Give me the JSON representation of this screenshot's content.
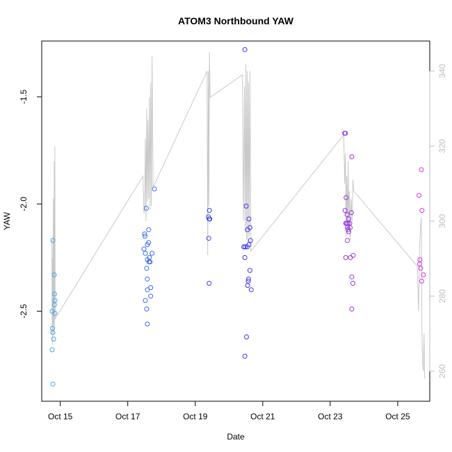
{
  "chart_data": {
    "type": "scatter",
    "title": "ATOM3 Northbound YAW",
    "xlabel": "Date",
    "ylabel": "YAW",
    "x_ticks": [
      "Oct 15",
      "Oct 17",
      "Oct 19",
      "Oct 21",
      "Oct 23",
      "Oct 25"
    ],
    "x_tick_days": [
      15,
      17,
      19,
      21,
      23,
      25
    ],
    "xlim_days": [
      14.45,
      25.95
    ],
    "ylim": [
      -2.92,
      -1.24
    ],
    "y_ticks": [
      -2.5,
      -2.0,
      -1.5
    ],
    "y_tick_labels": [
      "-2.5",
      "-2.0",
      "-1.5"
    ],
    "right_axis": {
      "ylim": [
        252,
        348
      ],
      "ticks": [
        260,
        280,
        300,
        320,
        340
      ],
      "tick_labels": [
        "260",
        "280",
        "300",
        "320",
        "340"
      ],
      "color": "#bdbdbd"
    },
    "colors": {
      "line": "#c8c8c8",
      "point_start": "#42a5e8",
      "point_mid": "#3333ee",
      "point_end": "#dd33dd",
      "axis": "#000000"
    },
    "grid": false,
    "points": [
      {
        "x": 14.78,
        "y": -2.17
      },
      {
        "x": 14.76,
        "y": -2.5
      },
      {
        "x": 14.77,
        "y": -2.58
      },
      {
        "x": 14.78,
        "y": -2.6
      },
      {
        "x": 14.8,
        "y": -2.63
      },
      {
        "x": 14.76,
        "y": -2.68
      },
      {
        "x": 14.78,
        "y": -2.84
      },
      {
        "x": 14.82,
        "y": -2.33
      },
      {
        "x": 14.83,
        "y": -2.42
      },
      {
        "x": 14.84,
        "y": -2.45
      },
      {
        "x": 14.83,
        "y": -2.47
      },
      {
        "x": 14.84,
        "y": -2.51
      },
      {
        "x": 17.55,
        "y": -2.02
      },
      {
        "x": 17.5,
        "y": -2.14
      },
      {
        "x": 17.51,
        "y": -2.15
      },
      {
        "x": 17.48,
        "y": -2.21
      },
      {
        "x": 17.58,
        "y": -2.19
      },
      {
        "x": 17.62,
        "y": -2.18
      },
      {
        "x": 17.52,
        "y": -2.23
      },
      {
        "x": 17.64,
        "y": -2.25
      },
      {
        "x": 17.58,
        "y": -2.26
      },
      {
        "x": 17.63,
        "y": -2.27
      },
      {
        "x": 17.66,
        "y": -2.27
      },
      {
        "x": 17.56,
        "y": -2.3
      },
      {
        "x": 17.58,
        "y": -2.35
      },
      {
        "x": 17.68,
        "y": -2.39
      },
      {
        "x": 17.58,
        "y": -2.4
      },
      {
        "x": 17.68,
        "y": -2.43
      },
      {
        "x": 17.52,
        "y": -2.45
      },
      {
        "x": 17.56,
        "y": -2.49
      },
      {
        "x": 17.58,
        "y": -2.56
      },
      {
        "x": 17.62,
        "y": -2.12
      },
      {
        "x": 17.72,
        "y": -2.23
      },
      {
        "x": 17.79,
        "y": -1.93
      },
      {
        "x": 19.42,
        "y": -2.03
      },
      {
        "x": 19.39,
        "y": -2.06
      },
      {
        "x": 19.41,
        "y": -2.07
      },
      {
        "x": 19.43,
        "y": -2.07
      },
      {
        "x": 19.4,
        "y": -2.16
      },
      {
        "x": 19.41,
        "y": -2.37
      },
      {
        "x": 20.47,
        "y": -1.28
      },
      {
        "x": 20.51,
        "y": -2.01
      },
      {
        "x": 20.59,
        "y": -2.07
      },
      {
        "x": 20.62,
        "y": -2.11
      },
      {
        "x": 20.55,
        "y": -2.12
      },
      {
        "x": 20.64,
        "y": -2.17
      },
      {
        "x": 20.59,
        "y": -2.19
      },
      {
        "x": 20.54,
        "y": -2.2
      },
      {
        "x": 20.48,
        "y": -2.2
      },
      {
        "x": 20.44,
        "y": -2.2
      },
      {
        "x": 20.47,
        "y": -2.25
      },
      {
        "x": 20.62,
        "y": -2.31
      },
      {
        "x": 20.58,
        "y": -2.35
      },
      {
        "x": 20.57,
        "y": -2.36
      },
      {
        "x": 20.55,
        "y": -2.38
      },
      {
        "x": 20.66,
        "y": -2.4
      },
      {
        "x": 20.52,
        "y": -2.62
      },
      {
        "x": 20.47,
        "y": -2.71
      },
      {
        "x": 23.43,
        "y": -1.67
      },
      {
        "x": 23.45,
        "y": -1.67
      },
      {
        "x": 23.64,
        "y": -1.78
      },
      {
        "x": 23.47,
        "y": -1.97
      },
      {
        "x": 23.44,
        "y": -2.03
      },
      {
        "x": 23.63,
        "y": -2.04
      },
      {
        "x": 23.5,
        "y": -2.05
      },
      {
        "x": 23.55,
        "y": -2.07
      },
      {
        "x": 23.46,
        "y": -2.09
      },
      {
        "x": 23.48,
        "y": -2.09
      },
      {
        "x": 23.52,
        "y": -2.09
      },
      {
        "x": 23.58,
        "y": -2.09
      },
      {
        "x": 23.51,
        "y": -2.11
      },
      {
        "x": 23.53,
        "y": -2.12
      },
      {
        "x": 23.55,
        "y": -2.13
      },
      {
        "x": 23.59,
        "y": -2.11
      },
      {
        "x": 23.51,
        "y": -2.17
      },
      {
        "x": 23.46,
        "y": -2.25
      },
      {
        "x": 23.68,
        "y": -2.24
      },
      {
        "x": 23.6,
        "y": -2.25
      },
      {
        "x": 23.64,
        "y": -2.34
      },
      {
        "x": 23.67,
        "y": -2.37
      },
      {
        "x": 23.64,
        "y": -2.49
      },
      {
        "x": 25.7,
        "y": -1.84
      },
      {
        "x": 25.63,
        "y": -1.96
      },
      {
        "x": 25.72,
        "y": -2.03
      },
      {
        "x": 25.66,
        "y": -2.26
      },
      {
        "x": 25.65,
        "y": -2.28
      },
      {
        "x": 25.68,
        "y": -2.3
      },
      {
        "x": 25.76,
        "y": -2.33
      },
      {
        "x": 25.71,
        "y": -2.36
      }
    ],
    "line": [
      [
        14.75,
        295
      ],
      [
        14.76,
        270
      ],
      [
        14.765,
        283
      ],
      [
        14.77,
        290
      ],
      [
        14.775,
        267
      ],
      [
        14.78,
        279
      ],
      [
        14.785,
        296
      ],
      [
        14.79,
        273
      ],
      [
        14.795,
        306
      ],
      [
        14.8,
        286
      ],
      [
        14.805,
        270
      ],
      [
        14.81,
        301
      ],
      [
        14.815,
        280
      ],
      [
        14.82,
        316
      ],
      [
        14.825,
        272
      ],
      [
        14.83,
        290
      ],
      [
        14.835,
        297
      ],
      [
        14.84,
        320
      ],
      [
        14.845,
        286
      ],
      [
        14.85,
        274
      ],
      [
        17.45,
        312
      ],
      [
        17.48,
        302
      ],
      [
        17.5,
        304
      ],
      [
        17.52,
        322
      ],
      [
        17.54,
        300
      ],
      [
        17.56,
        330
      ],
      [
        17.58,
        305
      ],
      [
        17.6,
        327
      ],
      [
        17.62,
        306
      ],
      [
        17.64,
        333
      ],
      [
        17.66,
        303
      ],
      [
        17.68,
        337
      ],
      [
        17.7,
        304
      ],
      [
        17.72,
        344
      ],
      [
        17.75,
        309
      ],
      [
        19.35,
        340
      ],
      [
        19.37,
        291
      ],
      [
        19.39,
        340
      ],
      [
        19.4,
        304
      ],
      [
        19.42,
        345
      ],
      [
        19.44,
        333
      ],
      [
        20.4,
        339
      ],
      [
        20.43,
        300
      ],
      [
        20.46,
        336
      ],
      [
        20.48,
        297
      ],
      [
        20.5,
        342
      ],
      [
        20.52,
        295
      ],
      [
        20.54,
        340
      ],
      [
        20.56,
        294
      ],
      [
        20.58,
        337
      ],
      [
        20.6,
        296
      ],
      [
        20.62,
        340
      ],
      [
        20.65,
        292
      ],
      [
        23.4,
        323
      ],
      [
        23.43,
        310
      ],
      [
        23.45,
        318
      ],
      [
        23.47,
        296
      ],
      [
        23.49,
        312
      ],
      [
        23.51,
        297
      ],
      [
        23.53,
        316
      ],
      [
        23.55,
        300
      ],
      [
        23.57,
        308
      ],
      [
        23.59,
        295
      ],
      [
        23.62,
        306
      ],
      [
        23.65,
        300
      ],
      [
        23.67,
        311
      ],
      [
        23.7,
        308
      ],
      [
        25.58,
        288
      ],
      [
        25.62,
        276
      ],
      [
        25.65,
        293
      ],
      [
        25.68,
        299
      ],
      [
        25.7,
        301
      ],
      [
        25.72,
        270
      ],
      [
        25.74,
        262
      ],
      [
        25.76,
        260
      ],
      [
        25.78,
        270
      ],
      [
        25.8,
        258
      ]
    ]
  }
}
